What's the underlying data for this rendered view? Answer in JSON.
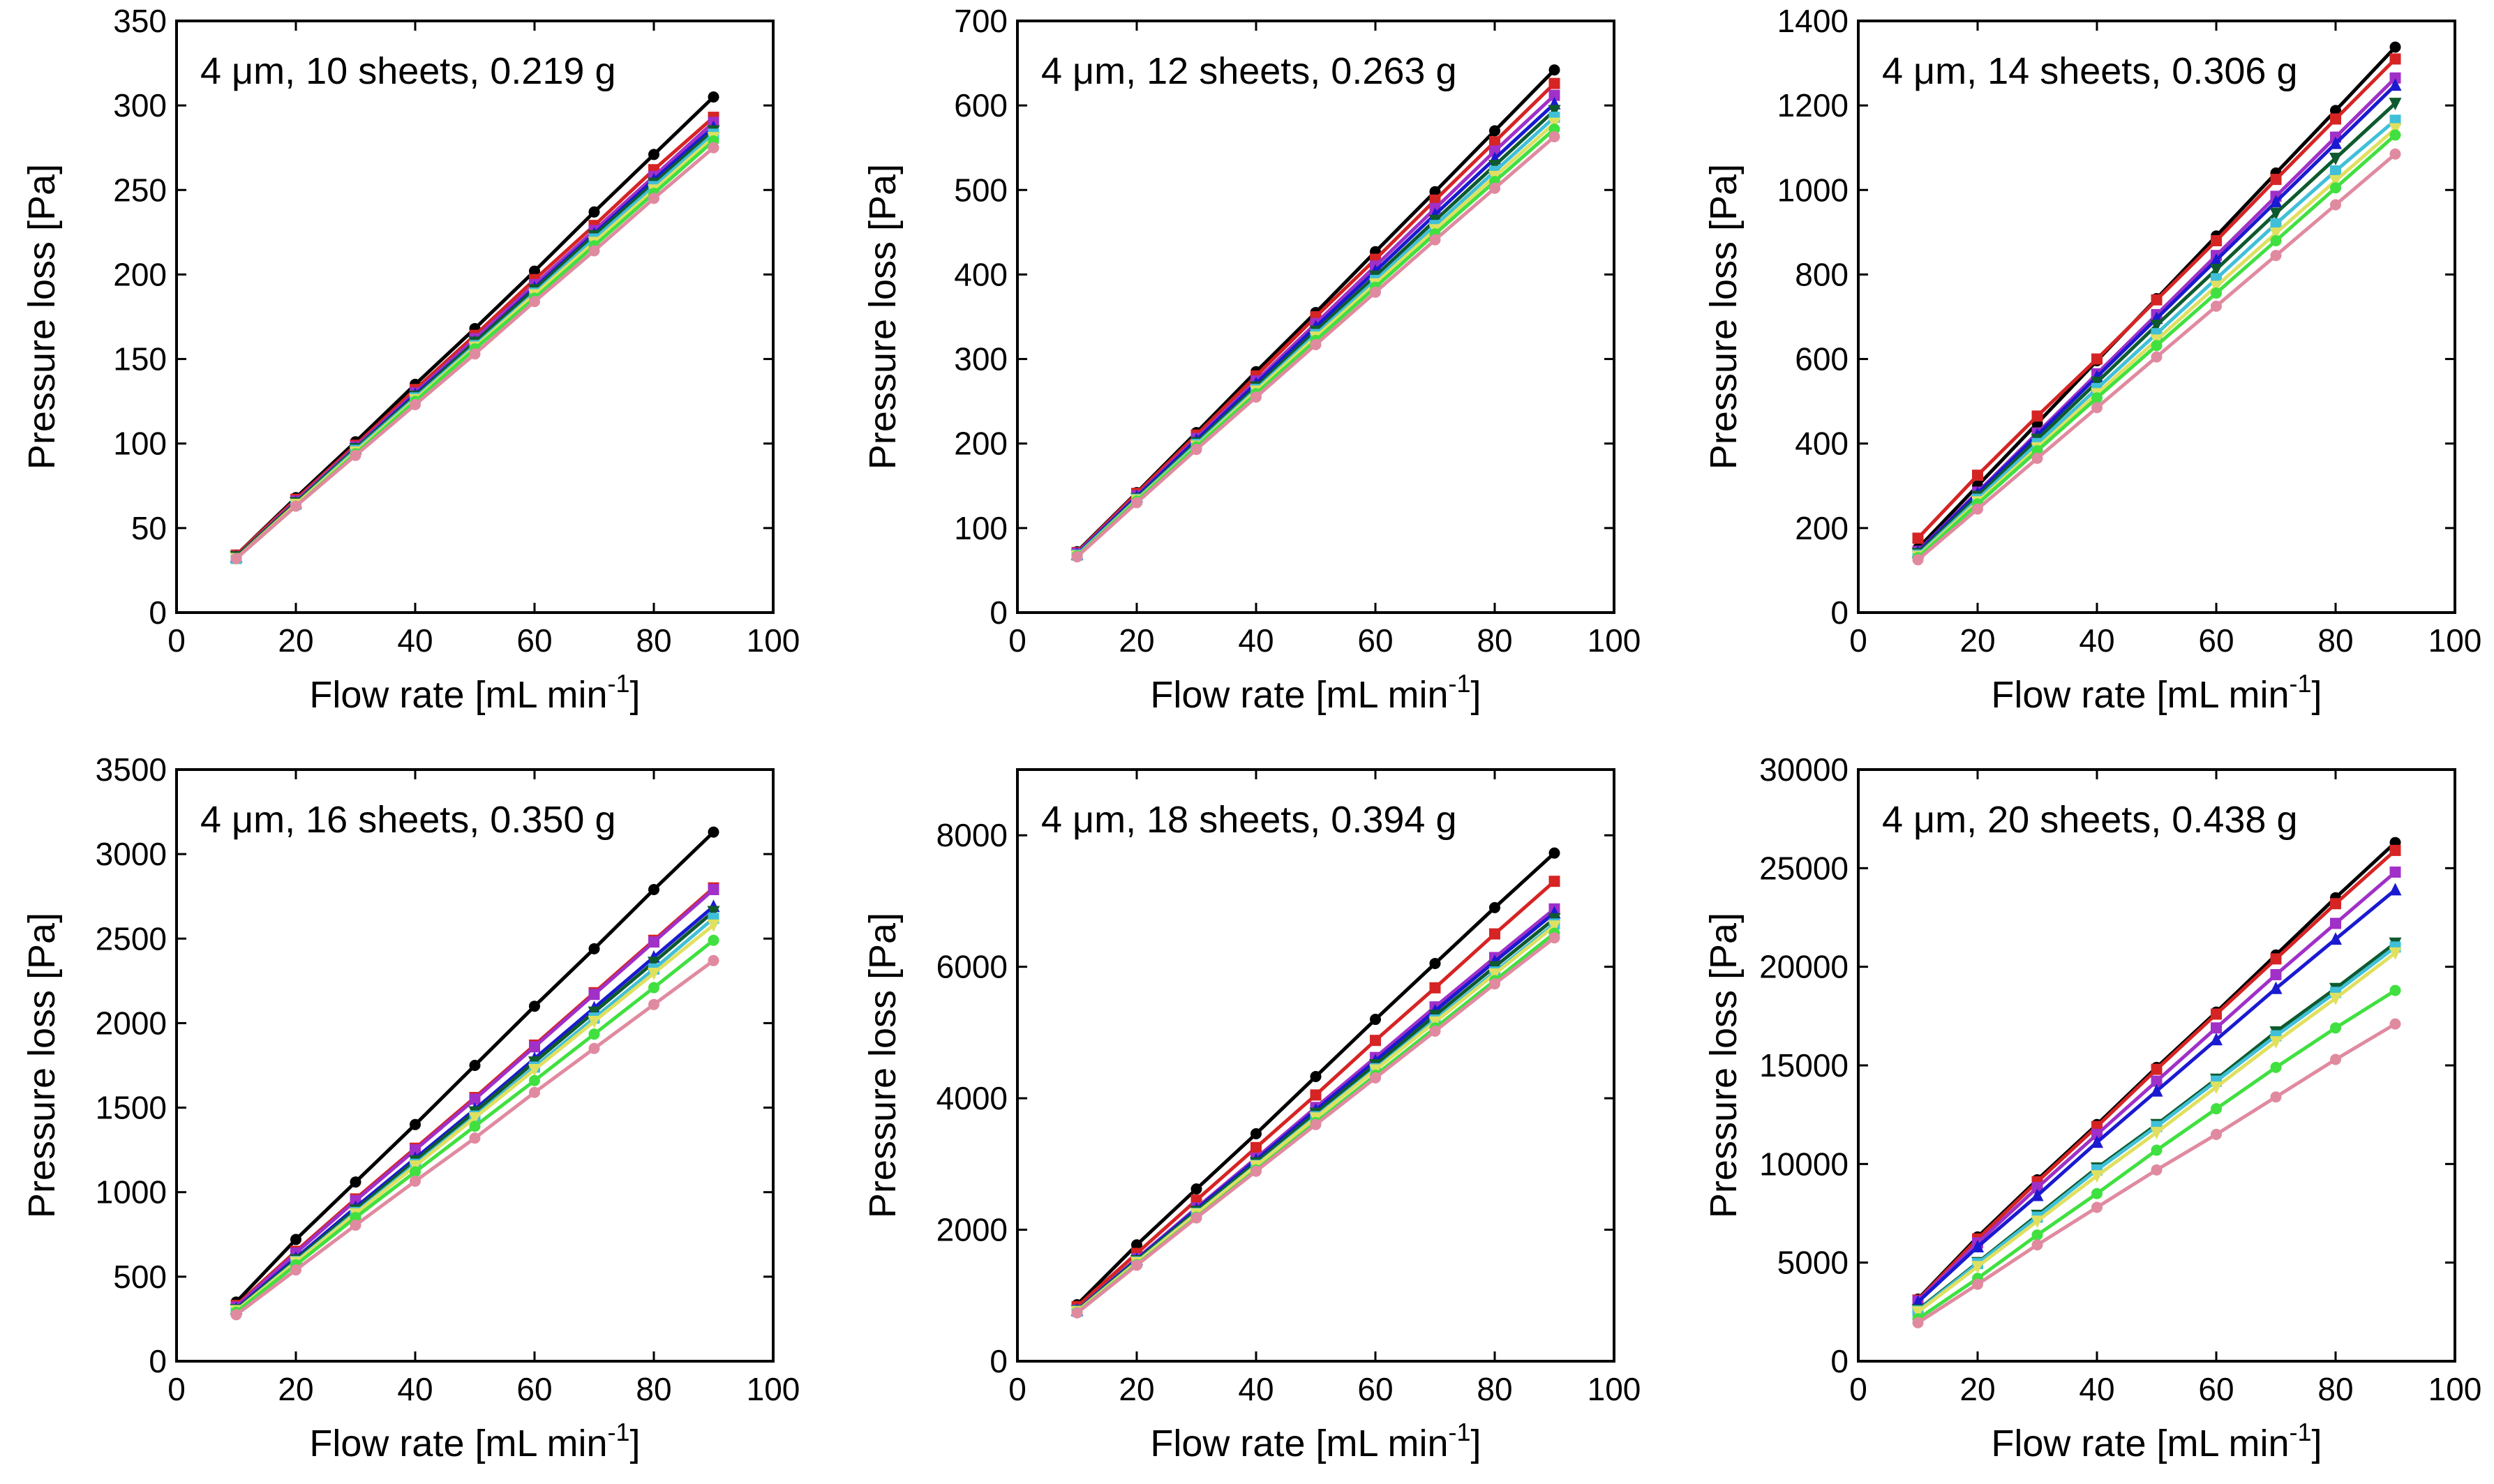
{
  "figure": {
    "shared": {
      "xlabel": "Flow rate [mL min",
      "xlabel_sup": "-1",
      "xlabel_end": "]",
      "ylabel": "Pressure loss [Pa]"
    },
    "series_colors": [
      "#000000",
      "#d62424",
      "#a030c8",
      "#1a1ad0",
      "#0e5a2e",
      "#40c0d8",
      "#e0e060",
      "#40e040",
      "#e08aa0"
    ]
  },
  "chart_data": [
    {
      "type": "line",
      "title": "4 μm, 10 sheets, 0.219 g",
      "xlabel": "Flow rate [mL min-1]",
      "ylabel": "Pressure loss [Pa]",
      "xlim": [
        0,
        100
      ],
      "ylim": [
        0,
        350
      ],
      "xticks": [
        0,
        20,
        40,
        60,
        80,
        100
      ],
      "yticks": [
        0,
        50,
        100,
        150,
        200,
        250,
        300,
        350
      ],
      "x": [
        10,
        20,
        30,
        40,
        50,
        60,
        70,
        80,
        90
      ],
      "series": [
        {
          "values": [
            34,
            68,
            101,
            135,
            168,
            202,
            237,
            271,
            305
          ]
        },
        {
          "values": [
            34,
            67,
            99,
            132,
            164,
            197,
            229,
            262,
            293
          ]
        },
        {
          "values": [
            33,
            66,
            98,
            130,
            162,
            194,
            226,
            258,
            290
          ]
        },
        {
          "values": [
            33,
            65,
            97,
            129,
            160,
            192,
            224,
            256,
            287
          ]
        },
        {
          "values": [
            33,
            65,
            97,
            128,
            160,
            191,
            223,
            254,
            285
          ]
        },
        {
          "values": [
            32,
            64,
            96,
            127,
            158,
            189,
            221,
            252,
            283
          ]
        },
        {
          "values": [
            32,
            64,
            95,
            126,
            157,
            188,
            219,
            250,
            281
          ]
        },
        {
          "values": [
            32,
            63,
            94,
            125,
            156,
            186,
            217,
            248,
            279
          ]
        },
        {
          "values": [
            32,
            63,
            93,
            123,
            153,
            184,
            214,
            245,
            275
          ]
        }
      ]
    },
    {
      "type": "line",
      "title": "4 μm, 12 sheets, 0.263 g",
      "xlabel": "Flow rate [mL min-1]",
      "ylabel": "Pressure loss [Pa]",
      "xlim": [
        0,
        100
      ],
      "ylim": [
        0,
        700
      ],
      "xticks": [
        0,
        20,
        40,
        60,
        80,
        100
      ],
      "yticks": [
        0,
        100,
        200,
        300,
        400,
        500,
        600,
        700
      ],
      "x": [
        10,
        20,
        30,
        40,
        50,
        60,
        70,
        80,
        90
      ],
      "series": [
        {
          "values": [
            72,
            142,
            213,
            285,
            355,
            427,
            498,
            570,
            642
          ]
        },
        {
          "values": [
            71,
            141,
            210,
            280,
            350,
            418,
            488,
            557,
            626
          ]
        },
        {
          "values": [
            70,
            138,
            206,
            274,
            342,
            410,
            478,
            546,
            612
          ]
        },
        {
          "values": [
            69,
            137,
            204,
            271,
            338,
            404,
            471,
            537,
            602
          ]
        },
        {
          "values": [
            68,
            135,
            201,
            267,
            333,
            398,
            464,
            529,
            594
          ]
        },
        {
          "values": [
            68,
            134,
            199,
            264,
            329,
            393,
            458,
            522,
            586
          ]
        },
        {
          "values": [
            67,
            133,
            197,
            262,
            326,
            389,
            453,
            516,
            579
          ]
        },
        {
          "values": [
            67,
            132,
            196,
            259,
            322,
            385,
            448,
            510,
            572
          ]
        },
        {
          "values": [
            66,
            130,
            193,
            255,
            317,
            379,
            441,
            502,
            563
          ]
        }
      ]
    },
    {
      "type": "line",
      "title": "4 μm, 14 sheets, 0.306 g",
      "xlabel": "Flow rate [mL min-1]",
      "ylabel": "Pressure loss [Pa]",
      "xlim": [
        0,
        100
      ],
      "ylim": [
        0,
        1400
      ],
      "xticks": [
        0,
        20,
        40,
        60,
        80,
        100
      ],
      "yticks": [
        0,
        200,
        400,
        600,
        800,
        1000,
        1200,
        1400
      ],
      "x": [
        10,
        20,
        30,
        40,
        50,
        60,
        70,
        80,
        90
      ],
      "series": [
        {
          "values": [
            152,
            300,
            448,
            596,
            743,
            891,
            1040,
            1188,
            1338
          ]
        },
        {
          "values": [
            176,
            325,
            465,
            600,
            740,
            880,
            1025,
            1168,
            1310
          ]
        },
        {
          "values": [
            145,
            285,
            425,
            565,
            705,
            845,
            985,
            1125,
            1265
          ]
        },
        {
          "values": [
            143,
            282,
            420,
            558,
            696,
            834,
            972,
            1110,
            1248
          ]
        },
        {
          "values": [
            140,
            275,
            410,
            545,
            680,
            812,
            945,
            1075,
            1205
          ]
        },
        {
          "values": [
            136,
            268,
            400,
            530,
            660,
            790,
            920,
            1045,
            1165
          ]
        },
        {
          "values": [
            133,
            262,
            390,
            518,
            645,
            772,
            898,
            1022,
            1145
          ]
        },
        {
          "values": [
            130,
            257,
            383,
            508,
            632,
            756,
            880,
            1005,
            1130
          ]
        },
        {
          "values": [
            125,
            245,
            365,
            485,
            605,
            725,
            845,
            965,
            1085
          ]
        }
      ]
    },
    {
      "type": "line",
      "title": "4 μm, 16 sheets, 0.350 g",
      "xlabel": "Flow rate [mL min-1]",
      "ylabel": "Pressure loss [Pa]",
      "xlim": [
        0,
        100
      ],
      "ylim": [
        0,
        3500
      ],
      "xticks": [
        0,
        20,
        40,
        60,
        80,
        100
      ],
      "yticks": [
        0,
        500,
        1000,
        1500,
        2000,
        2500,
        3000,
        3500
      ],
      "x": [
        10,
        20,
        30,
        40,
        50,
        60,
        70,
        80,
        90
      ],
      "series": [
        {
          "values": [
            350,
            720,
            1060,
            1400,
            1750,
            2100,
            2440,
            2790,
            3130
          ]
        },
        {
          "values": [
            330,
            650,
            960,
            1260,
            1560,
            1870,
            2180,
            2490,
            2800
          ]
        },
        {
          "values": [
            320,
            640,
            950,
            1250,
            1550,
            1860,
            2170,
            2480,
            2790
          ]
        },
        {
          "values": [
            310,
            610,
            910,
            1200,
            1490,
            1790,
            2090,
            2390,
            2690
          ]
        },
        {
          "values": [
            305,
            600,
            895,
            1185,
            1475,
            1770,
            2065,
            2360,
            2660
          ]
        },
        {
          "values": [
            300,
            590,
            880,
            1165,
            1450,
            1740,
            2030,
            2320,
            2620
          ]
        },
        {
          "values": [
            298,
            585,
            872,
            1155,
            1440,
            1725,
            2010,
            2295,
            2580
          ]
        },
        {
          "values": [
            290,
            570,
            850,
            1120,
            1390,
            1660,
            1935,
            2210,
            2490
          ]
        },
        {
          "values": [
            275,
            540,
            805,
            1065,
            1320,
            1590,
            1850,
            2110,
            2370
          ]
        }
      ]
    },
    {
      "type": "line",
      "title": "4 μm, 18 sheets, 0.394 g",
      "xlabel": "Flow rate [mL min-1]",
      "ylabel": "Pressure loss [Pa]",
      "xlim": [
        0,
        100
      ],
      "ylim": [
        0,
        9000
      ],
      "xticks": [
        0,
        20,
        40,
        60,
        80,
        100
      ],
      "yticks": [
        0,
        2000,
        4000,
        6000,
        8000
      ],
      "x": [
        10,
        20,
        30,
        40,
        50,
        60,
        70,
        80,
        90
      ],
      "series": [
        {
          "values": [
            860,
            1770,
            2620,
            3460,
            4330,
            5200,
            6050,
            6900,
            7730
          ]
        },
        {
          "values": [
            830,
            1640,
            2450,
            3250,
            4050,
            4880,
            5680,
            6500,
            7300
          ]
        },
        {
          "values": [
            780,
            1560,
            2330,
            3090,
            3860,
            4620,
            5390,
            6140,
            6880
          ]
        },
        {
          "values": [
            775,
            1545,
            2310,
            3060,
            3820,
            4570,
            5330,
            6080,
            6820
          ]
        },
        {
          "values": [
            770,
            1530,
            2280,
            3020,
            3770,
            4510,
            5260,
            6000,
            6730
          ]
        },
        {
          "values": [
            760,
            1510,
            2250,
            2980,
            3720,
            4450,
            5190,
            5920,
            6650
          ]
        },
        {
          "values": [
            755,
            1500,
            2240,
            2970,
            3700,
            4430,
            5160,
            5890,
            6620
          ]
        },
        {
          "values": [
            740,
            1470,
            2190,
            2910,
            3630,
            4350,
            5070,
            5790,
            6510
          ]
        },
        {
          "values": [
            735,
            1460,
            2180,
            2890,
            3600,
            4310,
            5020,
            5740,
            6440
          ]
        }
      ]
    },
    {
      "type": "line",
      "title": "4 μm, 20 sheets, 0.438 g",
      "xlabel": "Flow rate [mL min-1]",
      "ylabel": "Pressure loss [Pa]",
      "xlim": [
        0,
        100
      ],
      "ylim": [
        0,
        30000
      ],
      "xticks": [
        0,
        20,
        40,
        60,
        80,
        100
      ],
      "yticks": [
        0,
        5000,
        10000,
        15000,
        20000,
        25000,
        30000
      ],
      "x": [
        10,
        20,
        30,
        40,
        50,
        60,
        70,
        80,
        90
      ],
      "series": [
        {
          "values": [
            3150,
            6300,
            9200,
            12000,
            14900,
            17700,
            20600,
            23500,
            26300
          ]
        },
        {
          "values": [
            3100,
            6200,
            9100,
            11900,
            14800,
            17600,
            20400,
            23200,
            25900
          ]
        },
        {
          "values": [
            3050,
            6000,
            8800,
            11500,
            14200,
            16900,
            19600,
            22200,
            24800
          ]
        },
        {
          "values": [
            3000,
            5800,
            8400,
            11100,
            13700,
            16300,
            18900,
            21400,
            23900
          ]
        },
        {
          "values": [
            2600,
            5000,
            7400,
            9800,
            12000,
            14300,
            16700,
            18900,
            21200
          ]
        },
        {
          "values": [
            2550,
            4950,
            7300,
            9700,
            11900,
            14200,
            16500,
            18700,
            21000
          ]
        },
        {
          "values": [
            2500,
            4800,
            7100,
            9400,
            11600,
            13900,
            16200,
            18400,
            20700
          ]
        },
        {
          "values": [
            2150,
            4200,
            6400,
            8500,
            10700,
            12800,
            14900,
            16900,
            18800
          ]
        },
        {
          "values": [
            1950,
            3900,
            5900,
            7800,
            9700,
            11500,
            13400,
            15300,
            17100
          ]
        }
      ]
    }
  ]
}
